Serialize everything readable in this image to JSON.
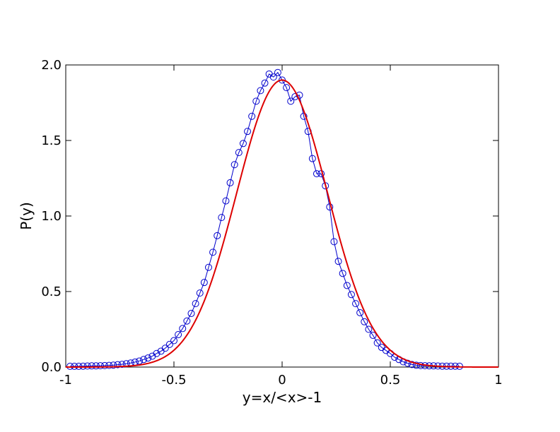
{
  "chart_data": {
    "type": "line",
    "title": "",
    "xlabel": "y=x/<x>-1",
    "ylabel": "P(y)",
    "xlim": [
      -1,
      1
    ],
    "ylim": [
      0,
      2
    ],
    "x_ticks": [
      -1,
      -0.5,
      0,
      0.5,
      1
    ],
    "x_tick_labels": [
      "-1",
      "-0.5",
      "0",
      "0.5",
      "1"
    ],
    "y_ticks": [
      0,
      0.5,
      1,
      1.5,
      2
    ],
    "y_tick_labels": [
      "0.0",
      "0.5",
      "1.0",
      "1.5",
      "2.0"
    ],
    "grid": false,
    "legend": "none",
    "series": [
      {
        "name": "data",
        "style": "line-with-open-circles",
        "color": "#0000cc",
        "x": [
          -0.98,
          -0.96,
          -0.94,
          -0.92,
          -0.9,
          -0.88,
          -0.86,
          -0.84,
          -0.82,
          -0.8,
          -0.78,
          -0.76,
          -0.74,
          -0.72,
          -0.7,
          -0.68,
          -0.66,
          -0.64,
          -0.62,
          -0.6,
          -0.58,
          -0.56,
          -0.54,
          -0.52,
          -0.5,
          -0.48,
          -0.46,
          -0.44,
          -0.42,
          -0.4,
          -0.38,
          -0.36,
          -0.34,
          -0.32,
          -0.3,
          -0.28,
          -0.26,
          -0.24,
          -0.22,
          -0.2,
          -0.18,
          -0.16,
          -0.14,
          -0.12,
          -0.1,
          -0.08,
          -0.06,
          -0.04,
          -0.02,
          0.0,
          0.02,
          0.04,
          0.06,
          0.08,
          0.1,
          0.12,
          0.14,
          0.16,
          0.18,
          0.2,
          0.22,
          0.24,
          0.26,
          0.28,
          0.3,
          0.32,
          0.34,
          0.36,
          0.38,
          0.4,
          0.42,
          0.44,
          0.46,
          0.48,
          0.5,
          0.52,
          0.54,
          0.56,
          0.58,
          0.6,
          0.62,
          0.64,
          0.66,
          0.68,
          0.7,
          0.72,
          0.74,
          0.76,
          0.78,
          0.8,
          0.82
        ],
        "values": [
          0.005,
          0.005,
          0.005,
          0.006,
          0.007,
          0.008,
          0.008,
          0.009,
          0.01,
          0.011,
          0.013,
          0.016,
          0.018,
          0.022,
          0.027,
          0.033,
          0.04,
          0.05,
          0.06,
          0.072,
          0.09,
          0.105,
          0.125,
          0.15,
          0.175,
          0.215,
          0.255,
          0.305,
          0.355,
          0.42,
          0.49,
          0.56,
          0.66,
          0.76,
          0.87,
          0.99,
          1.1,
          1.22,
          1.34,
          1.42,
          1.48,
          1.56,
          1.66,
          1.76,
          1.83,
          1.88,
          1.94,
          1.92,
          1.95,
          1.9,
          1.85,
          1.76,
          1.79,
          1.8,
          1.66,
          1.56,
          1.38,
          1.28,
          1.28,
          1.2,
          1.06,
          0.83,
          0.7,
          0.62,
          0.54,
          0.48,
          0.42,
          0.36,
          0.3,
          0.25,
          0.21,
          0.16,
          0.13,
          0.11,
          0.09,
          0.065,
          0.05,
          0.035,
          0.025,
          0.017,
          0.012,
          0.01,
          0.009,
          0.008,
          0.008,
          0.007,
          0.006,
          0.006,
          0.006,
          0.006,
          0.005
        ]
      },
      {
        "name": "gaussian fit",
        "style": "line",
        "color": "#dd0000",
        "curve": "gaussian",
        "amplitude": 1.9,
        "mean": 0.0,
        "sigma": 0.21
      }
    ]
  }
}
